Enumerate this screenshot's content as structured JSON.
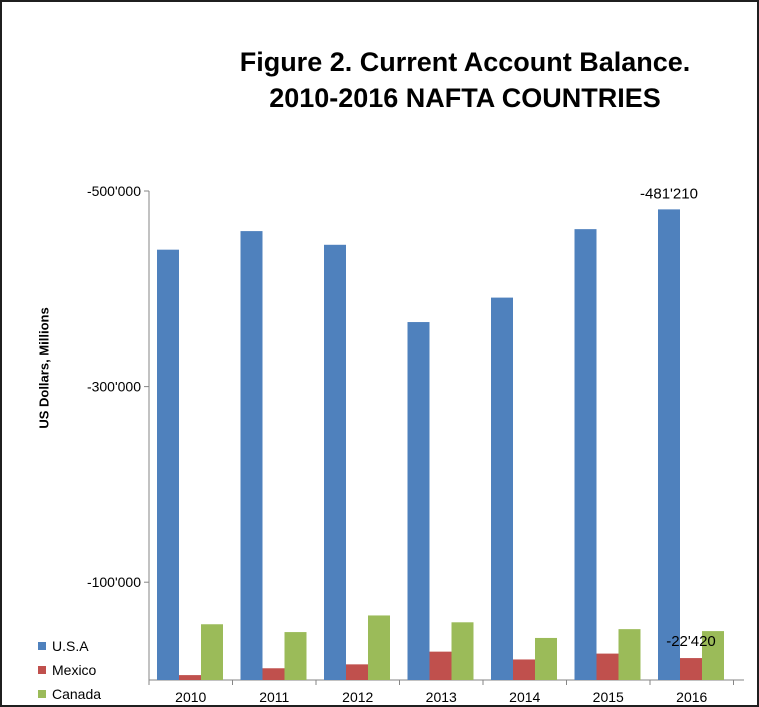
{
  "chart_data": {
    "type": "bar",
    "title_line1": "Figure 2. Current Account Balance.",
    "title_line2": "2010-2016  NAFTA COUNTRIES",
    "ylabel": "US Dollars, Millions",
    "categories": [
      "2010",
      "2011",
      "2012",
      "2013",
      "2014",
      "2015",
      "2016"
    ],
    "y_ticks": [
      {
        "value": -500000,
        "label": "-500'000"
      },
      {
        "value": -300000,
        "label": "-300'000"
      },
      {
        "value": -100000,
        "label": "-100'000"
      }
    ],
    "ylim": [
      0,
      -500000
    ],
    "series": [
      {
        "name": "U.S.A",
        "color": "#4f81bd",
        "values": [
          -440000,
          -459000,
          -445000,
          -366000,
          -391000,
          -461000,
          -481210
        ]
      },
      {
        "name": "Mexico",
        "color": "#c0504d",
        "values": [
          -5000,
          -12000,
          -16000,
          -29000,
          -21000,
          -27000,
          -22420
        ]
      },
      {
        "name": "Canada",
        "color": "#9bbb59",
        "values": [
          -57000,
          -49000,
          -66000,
          -59000,
          -43000,
          -52000,
          -50000
        ]
      }
    ],
    "data_labels": [
      {
        "series": 0,
        "index": 6,
        "text": "-481'210"
      },
      {
        "series": 1,
        "index": 6,
        "text": "-22'420"
      }
    ],
    "legend_position": "bottom-left"
  }
}
